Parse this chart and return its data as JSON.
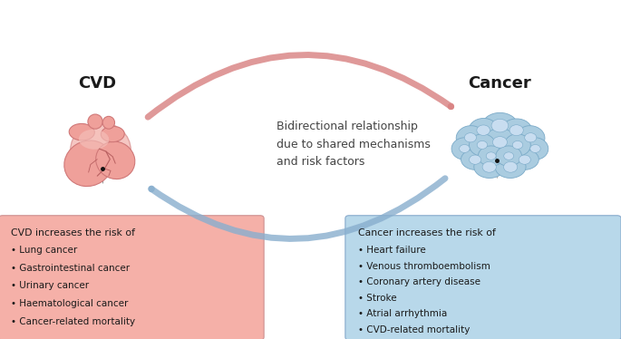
{
  "title_cvd": "CVD",
  "title_cancer": "Cancer",
  "middle_text": "Bidirectional relationship\ndue to shared mechanisms\nand risk factors",
  "cvd_box_title": "CVD increases the risk of",
  "cvd_bullets": [
    "Lung cancer",
    "Gastrointestinal cancer",
    "Urinary cancer",
    "Haematological cancer",
    "Cancer-related mortality"
  ],
  "cancer_box_title": "Cancer increases the risk of",
  "cancer_bullets": [
    "Heart failure",
    "Venous thromboembolism",
    "Coronary artery disease",
    "Stroke",
    "Atrial arrhythmia",
    "CVD-related mortality"
  ],
  "cvd_box_color": "#F5B0A8",
  "cancer_box_color": "#B8D8EA",
  "heart_fill": "#EFA09A",
  "heart_edge": "#D07878",
  "heart_highlight": "#F5C0BA",
  "cancer_cell_fill": "#AACCE0",
  "cancer_cell_edge": "#7AAAC8",
  "cancer_cell_inner": "#C8DDF0",
  "arrow_red": "#D88080",
  "arrow_blue": "#88AECE",
  "bg_color": "#FFFFFF",
  "text_color": "#1A1A1A",
  "dashed_color": "#999999",
  "figsize": [
    6.85,
    3.74
  ],
  "dpi": 100
}
